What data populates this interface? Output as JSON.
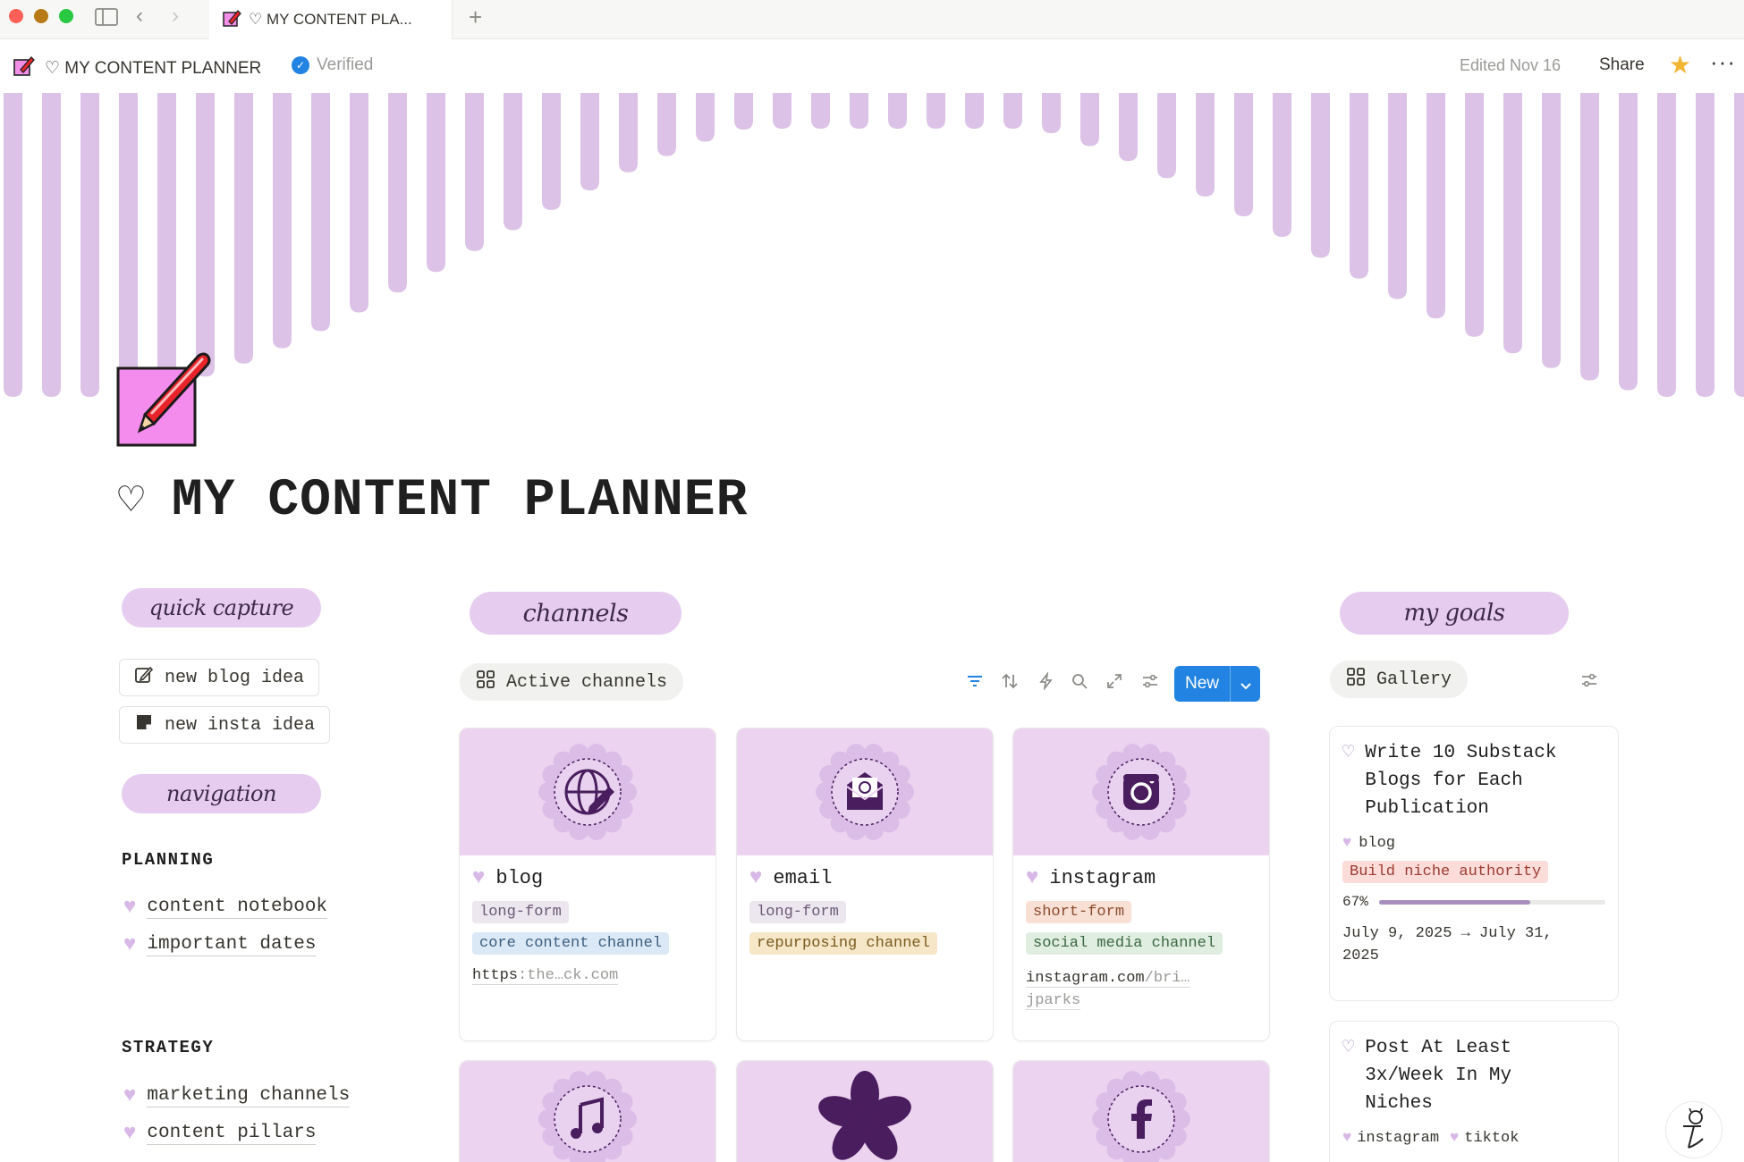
{
  "browser": {
    "tab_title": "♡ MY CONTENT PLA...",
    "colors": {
      "close": "#ff5f57",
      "minimize": "#b87a16",
      "maximize": "#28c840"
    }
  },
  "topbar": {
    "breadcrumb": "♡ MY CONTENT PLANNER",
    "verified_label": "Verified",
    "edited": "Edited Nov 16",
    "share_label": "Share"
  },
  "page": {
    "title_heart": "♡",
    "title": "MY CONTENT PLANNER",
    "accent": "#e6cdef",
    "cover_stripe_color": "#dcc2e6"
  },
  "left": {
    "quick_capture": "quick capture",
    "buttons": [
      {
        "label": "new blog idea",
        "icon": "edit-icon"
      },
      {
        "label": "new insta idea",
        "icon": "note-icon"
      }
    ],
    "navigation": "navigation",
    "sections": [
      {
        "heading": "PLANNING",
        "links": [
          "content notebook",
          "important dates"
        ]
      },
      {
        "heading": "STRATEGY",
        "links": [
          "marketing channels",
          "content pillars"
        ]
      }
    ]
  },
  "channels": {
    "header": "channels",
    "view_name": "Active channels",
    "new_label": "New",
    "cards": [
      {
        "name": "blog",
        "icon": "globe-pencil-icon",
        "tags": [
          {
            "text": "long-form",
            "color": "purple"
          },
          {
            "text": "core content channel",
            "color": "blue"
          }
        ],
        "url_main": "https",
        "url_gray": ":the…ck.com",
        "url_line2": ""
      },
      {
        "name": "email",
        "icon": "envelope-icon",
        "tags": [
          {
            "text": "long-form",
            "color": "purple"
          },
          {
            "text": "repurposing channel",
            "color": "yellow"
          }
        ],
        "url_main": "",
        "url_gray": "",
        "url_line2": ""
      },
      {
        "name": "instagram",
        "icon": "instagram-icon",
        "tags": [
          {
            "text": "short-form",
            "color": "orange"
          },
          {
            "text": "social media channel",
            "color": "green"
          }
        ],
        "url_main": "instagram.com",
        "url_gray": "/bri…",
        "url_line2": "jparks"
      }
    ],
    "row2_icons": [
      "music-note-icon",
      "flower-icon",
      "facebook-icon"
    ]
  },
  "goals": {
    "header": "my goals",
    "view_name": "Gallery",
    "cards": [
      {
        "title": "Write 10 Substack Blogs for Each Publication",
        "channel": "blog",
        "pillar": "Build niche authority",
        "progress_label": "67%",
        "progress": 0.67,
        "dates": "July 9, 2025 → July 31, 2025"
      },
      {
        "title": "Post At Least 3x/Week In My Niches",
        "channels": [
          "instagram",
          "tiktok"
        ]
      }
    ]
  }
}
